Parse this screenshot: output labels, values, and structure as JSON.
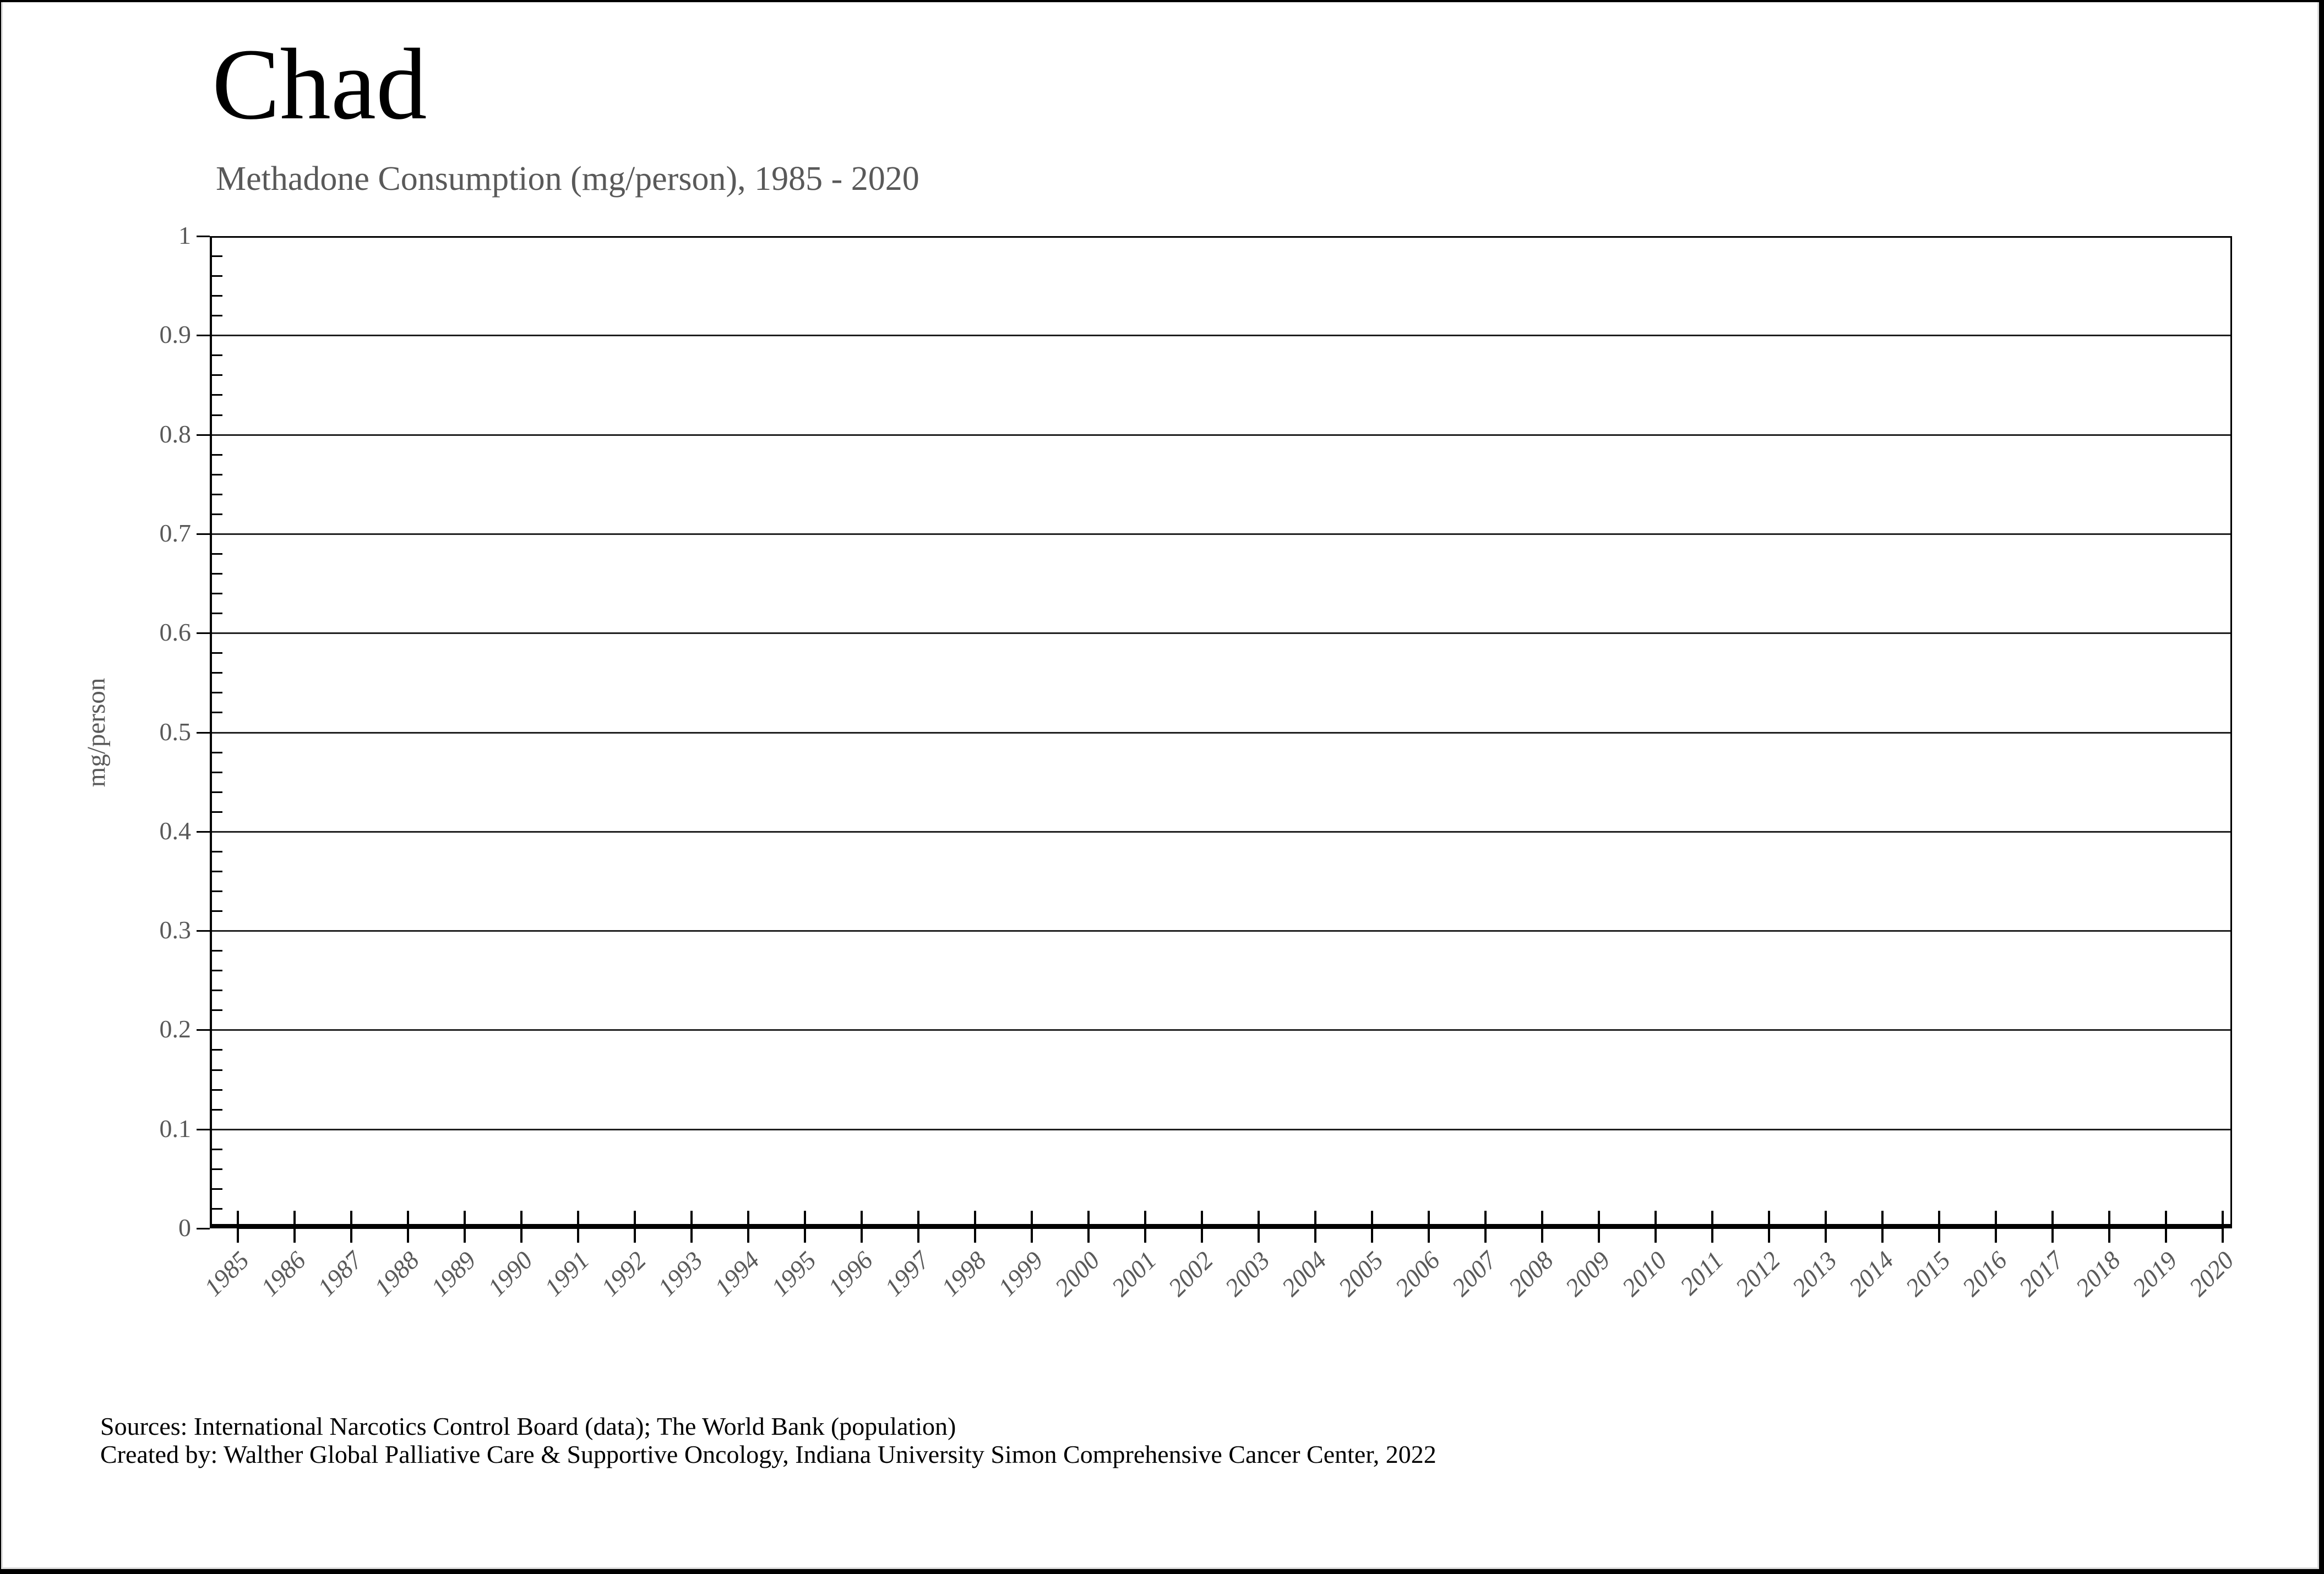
{
  "header": {
    "title": "Chad",
    "subtitle": "Methadone Consumption (mg/person), 1985 - 2020"
  },
  "chart_data": {
    "type": "line",
    "title": "Chad",
    "subtitle": "Methadone Consumption (mg/person), 1985 - 2020",
    "x": [
      1985,
      1986,
      1987,
      1988,
      1989,
      1990,
      1991,
      1992,
      1993,
      1994,
      1995,
      1996,
      1997,
      1998,
      1999,
      2000,
      2001,
      2002,
      2003,
      2004,
      2005,
      2006,
      2007,
      2008,
      2009,
      2010,
      2011,
      2012,
      2013,
      2014,
      2015,
      2016,
      2017,
      2018,
      2019,
      2020
    ],
    "series": [
      {
        "name": "Methadone consumption (mg/person)",
        "color": "#000000",
        "values": [
          0,
          0,
          0,
          0,
          0,
          0,
          0,
          0,
          0,
          0,
          0,
          0,
          0,
          0,
          0,
          0,
          0,
          0,
          0,
          0,
          0,
          0,
          0,
          0,
          0,
          0,
          0,
          0,
          0,
          0,
          0,
          0,
          0,
          0,
          0,
          0
        ]
      }
    ],
    "xlabel": "",
    "ylabel": "mg/person",
    "ylim": [
      0,
      1
    ],
    "yticks": [
      "1",
      "0.9",
      "0.8",
      "0.7",
      "0.6",
      "0.5",
      "0.4",
      "0.3",
      "0.2",
      "0.1",
      "0"
    ],
    "ytick_values": [
      1,
      0.9,
      0.8,
      0.7,
      0.6,
      0.5,
      0.4,
      0.3,
      0.2,
      0.1,
      0
    ],
    "y_minor_step": 0.02,
    "grid": "horizontal-major",
    "legend_position": "none"
  },
  "footer": {
    "line1": "Sources: International Narcotics Control Board (data); The World Bank (population)",
    "line2": "Created by: Walther Global Palliative Care & Supportive Oncology, Indiana University Simon Comprehensive Cancer Center, 2022"
  },
  "colors": {
    "title": "#000000",
    "subtitle": "#595959",
    "axis": "#000000",
    "gridline": "#1f1f1f",
    "tick_label": "#595959",
    "series": "#000000",
    "footer_text": "#000000"
  }
}
